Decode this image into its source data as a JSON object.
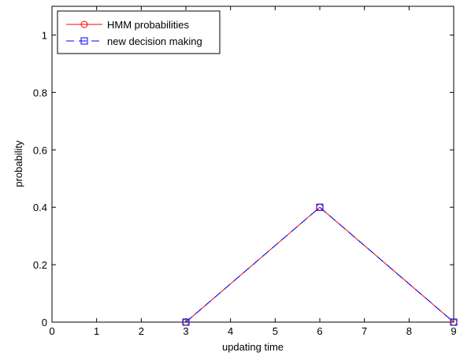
{
  "chart_data": {
    "type": "line",
    "xlabel": "updating time",
    "ylabel": "probability",
    "xlim": [
      0,
      9
    ],
    "ylim": [
      0,
      1.1
    ],
    "xticks": [
      0,
      1,
      2,
      3,
      4,
      5,
      6,
      7,
      8,
      9
    ],
    "yticks": [
      0,
      0.2,
      0.4,
      0.6,
      0.8,
      1
    ],
    "ytick_labels": [
      "0",
      "0.2",
      "0.4",
      "0.6",
      "0.8",
      "1"
    ],
    "grid": false,
    "legend_position": "top-left",
    "series": [
      {
        "name": "HMM probabilities",
        "color": "#ff0000",
        "line_style": "solid",
        "marker": "circle",
        "x": [
          3,
          6,
          9
        ],
        "y": [
          0,
          0.4,
          0
        ]
      },
      {
        "name": "new decision making",
        "color": "#0000ff",
        "line_style": "dashed",
        "marker": "square",
        "x": [
          3,
          6,
          9
        ],
        "y": [
          0,
          0.4,
          0
        ]
      }
    ]
  }
}
